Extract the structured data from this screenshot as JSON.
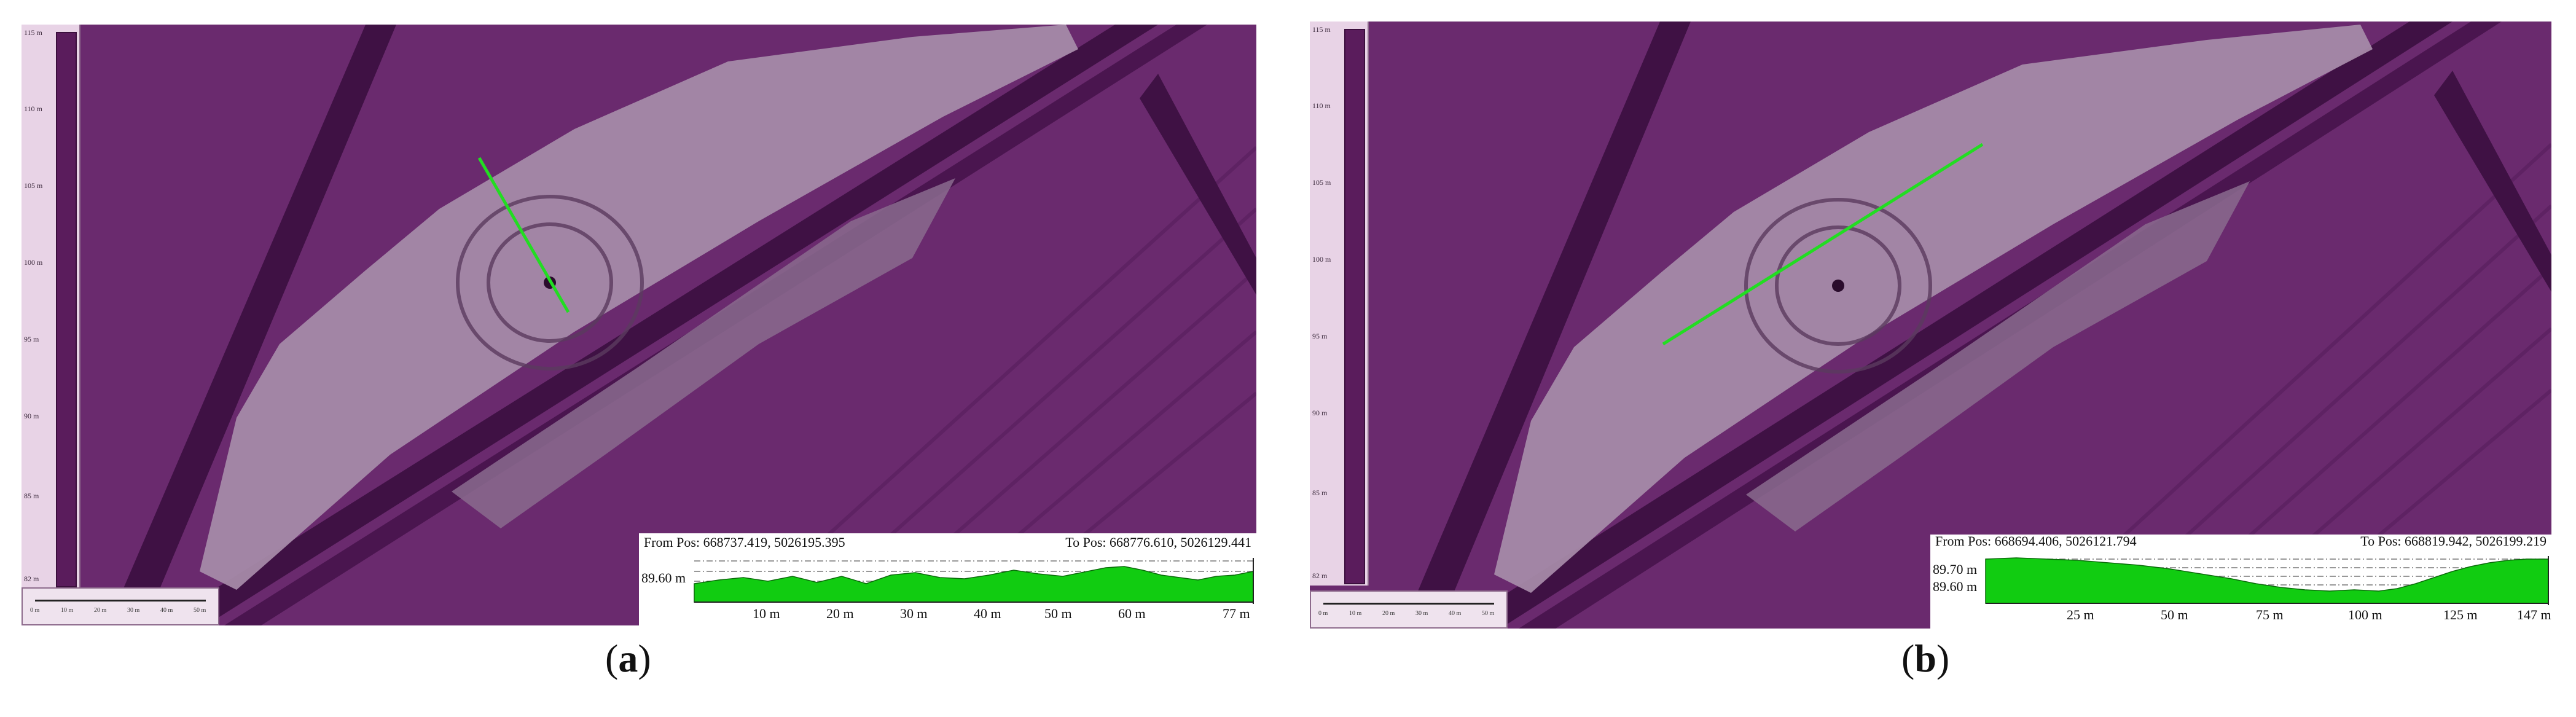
{
  "panels": [
    {
      "id": "a",
      "label_text": "a",
      "scale": {
        "labels": [
          "115 m",
          "110 m",
          "105 m",
          "100 m",
          "95 m",
          "90 m",
          "85 m",
          "82 m"
        ],
        "distance_labels": [
          "0 m",
          "10 m",
          "20 m",
          "30 m",
          "40 m",
          "50 m"
        ]
      },
      "profile": {
        "from_pos": "From Pos: 668737.419, 5026195.395",
        "to_pos": "To Pos: 668776.610, 5026129.441",
        "y_labels": [
          "89.60 m"
        ],
        "x_labels": [
          "10 m",
          "20 m",
          "30 m",
          "40 m",
          "50 m",
          "60 m",
          "77 m"
        ]
      }
    },
    {
      "id": "b",
      "label_text": "b",
      "scale": {
        "labels": [
          "115 m",
          "110 m",
          "105 m",
          "100 m",
          "95 m",
          "90 m",
          "85 m",
          "82 m"
        ],
        "distance_labels": [
          "0 m",
          "10 m",
          "20 m",
          "30 m",
          "40 m",
          "50 m"
        ]
      },
      "profile": {
        "from_pos": "From Pos: 668694.406, 5026121.794",
        "to_pos": "To Pos: 668819.942, 5026199.219",
        "y_labels": [
          "89.70 m",
          "89.60 m"
        ],
        "x_labels": [
          "25 m",
          "50 m",
          "75 m",
          "100 m",
          "125 m",
          "147 m"
        ]
      }
    }
  ],
  "colors": {
    "terrain": "#6a2a6e",
    "terrain_dark": "#3f1144",
    "survey_area": "#a58aa8",
    "transect": "#22dd22",
    "profile_fill": "#11cc11"
  }
}
